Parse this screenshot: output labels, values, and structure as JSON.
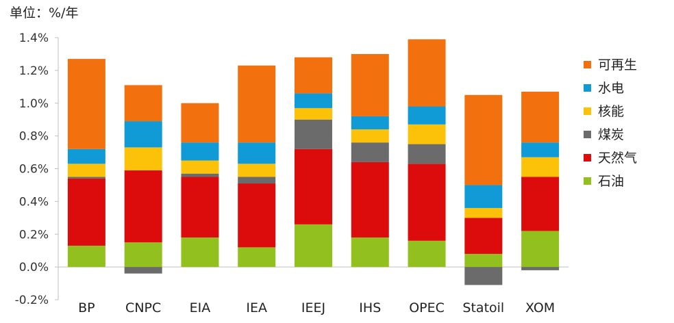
{
  "unit_label": "单位：%/年",
  "chart_data": {
    "type": "bar",
    "stacked": true,
    "categories": [
      "BP",
      "CNPC",
      "EIA",
      "IEA",
      "IEEJ",
      "IHS",
      "OPEC",
      "Statoil",
      "XOM"
    ],
    "ylim": [
      -0.2,
      1.4
    ],
    "yticks": [
      "-0.2%",
      "0.0%",
      "0.2%",
      "0.4%",
      "0.6%",
      "0.8%",
      "1.0%",
      "1.2%",
      "1.4%"
    ],
    "ytick_values": [
      -0.2,
      0.0,
      0.2,
      0.4,
      0.6,
      0.8,
      1.0,
      1.2,
      1.4
    ],
    "grid": false,
    "legend_position": "right",
    "series": [
      {
        "name": "石油",
        "color": "#92c11f",
        "values": [
          0.13,
          0.15,
          0.18,
          0.12,
          0.26,
          0.18,
          0.16,
          0.08,
          0.22
        ]
      },
      {
        "name": "天然气",
        "color": "#dd0c0c",
        "values": [
          0.41,
          0.44,
          0.37,
          0.39,
          0.46,
          0.46,
          0.47,
          0.22,
          0.33
        ]
      },
      {
        "name": "煤炭",
        "color": "#6b6b6b",
        "values": [
          0.01,
          -0.04,
          0.02,
          0.04,
          0.18,
          0.12,
          0.12,
          -0.11,
          -0.02
        ]
      },
      {
        "name": "核能",
        "color": "#fcc20a",
        "values": [
          0.08,
          0.14,
          0.08,
          0.08,
          0.07,
          0.08,
          0.12,
          0.06,
          0.12
        ]
      },
      {
        "name": "水电",
        "color": "#109bd6",
        "values": [
          0.09,
          0.16,
          0.11,
          0.13,
          0.09,
          0.08,
          0.11,
          0.14,
          0.09
        ]
      },
      {
        "name": "可再生",
        "color": "#f3700f",
        "values": [
          0.55,
          0.22,
          0.24,
          0.47,
          0.22,
          0.38,
          0.41,
          0.55,
          0.31
        ]
      }
    ],
    "legend_order": [
      "可再生",
      "水电",
      "核能",
      "煤炭",
      "天然气",
      "石油"
    ]
  }
}
